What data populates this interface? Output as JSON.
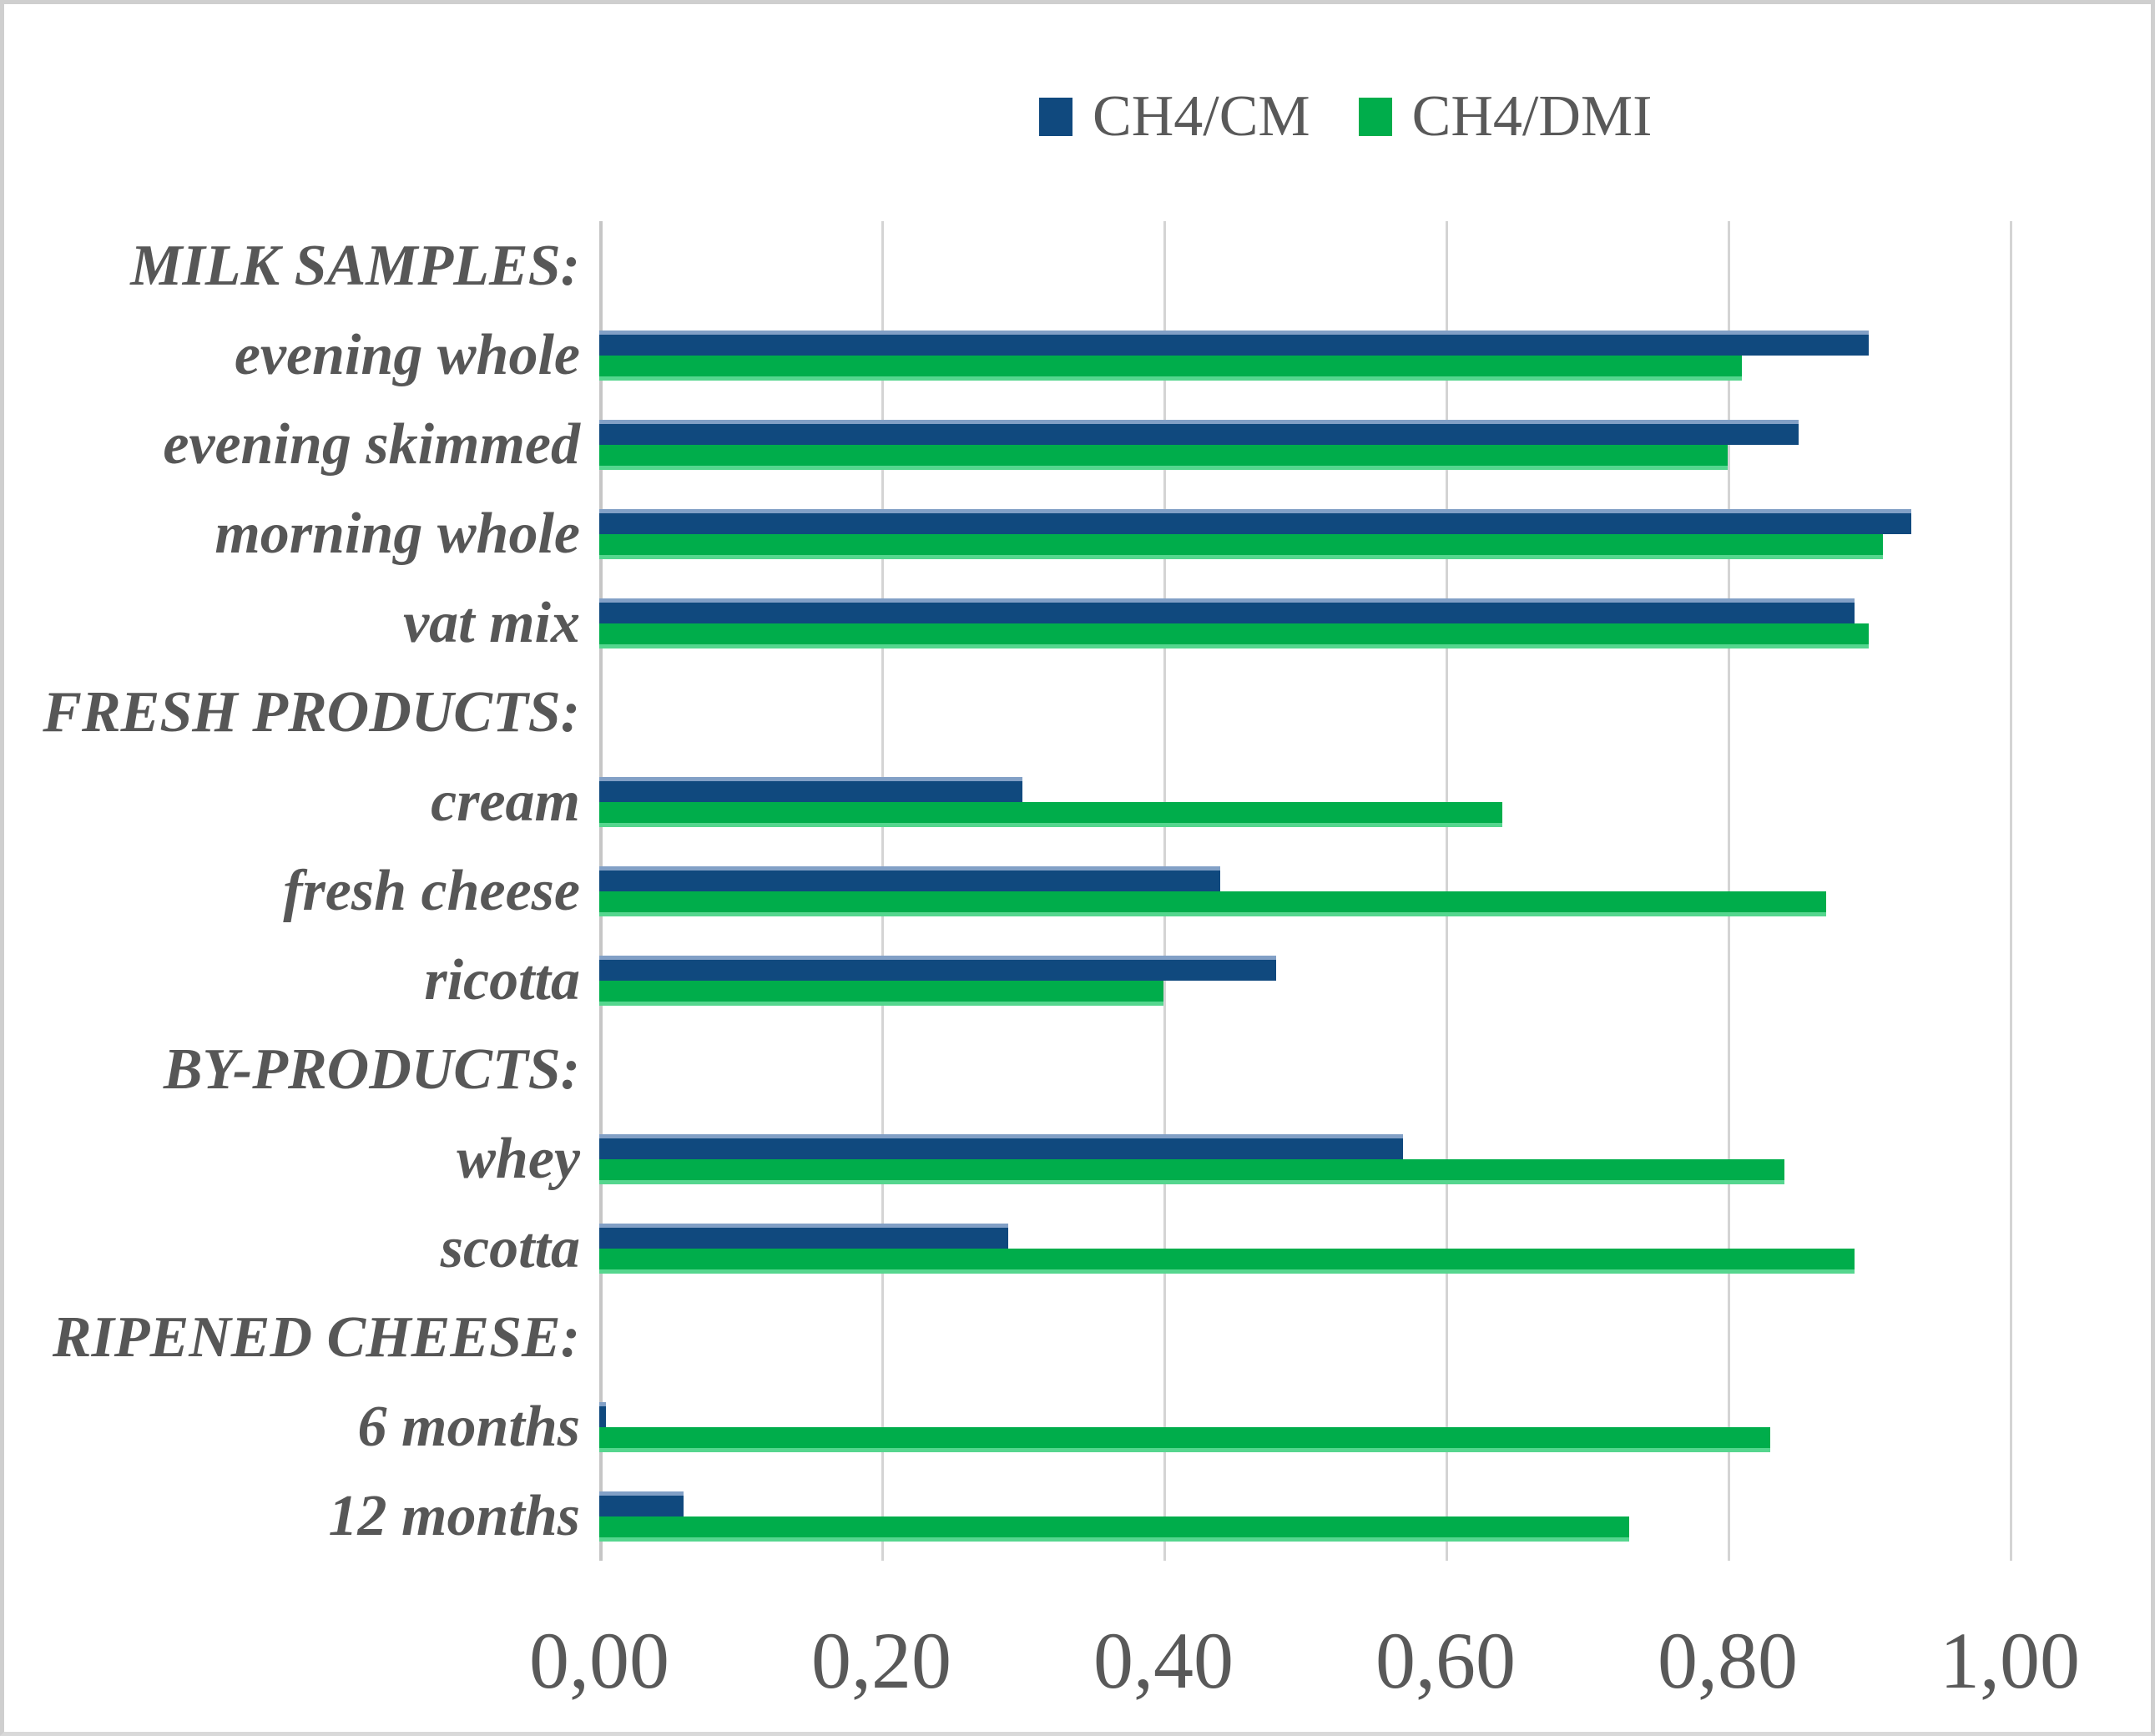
{
  "legend": {
    "items": [
      {
        "label": "CH4/CM",
        "color": "#10497e"
      },
      {
        "label": "CH4/DMI",
        "color": "#00ad4b"
      }
    ]
  },
  "colors": {
    "cm_bar": "#10497e",
    "cm_bar_highlight": "#82a0c6",
    "dmi_bar": "#00ad4b",
    "dmi_bar_highlight": "#55d68e",
    "gridline": "#d4d4d4",
    "axis_line": "#c6c6c6",
    "text": "#595959",
    "border": "#cfcfcf"
  },
  "chart_data": {
    "type": "bar",
    "orientation": "horizontal",
    "title": "",
    "xlabel": "",
    "ylabel": "",
    "xlim": [
      0,
      1.0
    ],
    "grid": "vertical",
    "legend_position": "top",
    "x_ticks": [
      "0,00",
      "0,20",
      "0,40",
      "0,60",
      "0,80",
      "1,00"
    ],
    "x_tick_values": [
      0,
      0.2,
      0.4,
      0.6,
      0.8,
      1.0
    ],
    "categories": [
      "MILK SAMPLES:",
      "evening whole",
      "evening skimmed",
      "morning whole",
      "vat mix",
      "FRESH PRODUCTS:",
      "cream",
      "fresh cheese",
      "ricotta",
      "BY-PRODUCTS:",
      "whey",
      "scotta",
      "RIPENED CHEESE:",
      "6 months",
      "12 months"
    ],
    "series": [
      {
        "name": "CH4/CM",
        "values": [
          null,
          0.9,
          0.85,
          0.93,
          0.89,
          null,
          0.3,
          0.44,
          0.48,
          null,
          0.57,
          0.29,
          null,
          0.005,
          0.06
        ]
      },
      {
        "name": "CH4/DMI",
        "values": [
          null,
          0.81,
          0.8,
          0.91,
          0.9,
          null,
          0.64,
          0.87,
          0.4,
          null,
          0.84,
          0.89,
          null,
          0.83,
          0.73
        ]
      }
    ],
    "rows": [
      {
        "label": "MILK SAMPLES:",
        "header": true,
        "cm": null,
        "dmi": null
      },
      {
        "label": "evening whole",
        "header": false,
        "cm": 0.9,
        "dmi": 0.81
      },
      {
        "label": "evening skimmed",
        "header": false,
        "cm": 0.85,
        "dmi": 0.8
      },
      {
        "label": "morning whole",
        "header": false,
        "cm": 0.93,
        "dmi": 0.91
      },
      {
        "label": "vat mix",
        "header": false,
        "cm": 0.89,
        "dmi": 0.9
      },
      {
        "label": "FRESH PRODUCTS:",
        "header": true,
        "cm": null,
        "dmi": null
      },
      {
        "label": "cream",
        "header": false,
        "cm": 0.3,
        "dmi": 0.64
      },
      {
        "label": "fresh cheese",
        "header": false,
        "cm": 0.44,
        "dmi": 0.87
      },
      {
        "label": "ricotta",
        "header": false,
        "cm": 0.48,
        "dmi": 0.4
      },
      {
        "label": "BY-PRODUCTS:",
        "header": true,
        "cm": null,
        "dmi": null
      },
      {
        "label": "whey",
        "header": false,
        "cm": 0.57,
        "dmi": 0.84
      },
      {
        "label": "scotta",
        "header": false,
        "cm": 0.29,
        "dmi": 0.89
      },
      {
        "label": "RIPENED CHEESE:",
        "header": true,
        "cm": null,
        "dmi": null
      },
      {
        "label": "6 months",
        "header": false,
        "cm": 0.005,
        "dmi": 0.83
      },
      {
        "label": "12 months",
        "header": false,
        "cm": 0.06,
        "dmi": 0.73
      }
    ]
  }
}
